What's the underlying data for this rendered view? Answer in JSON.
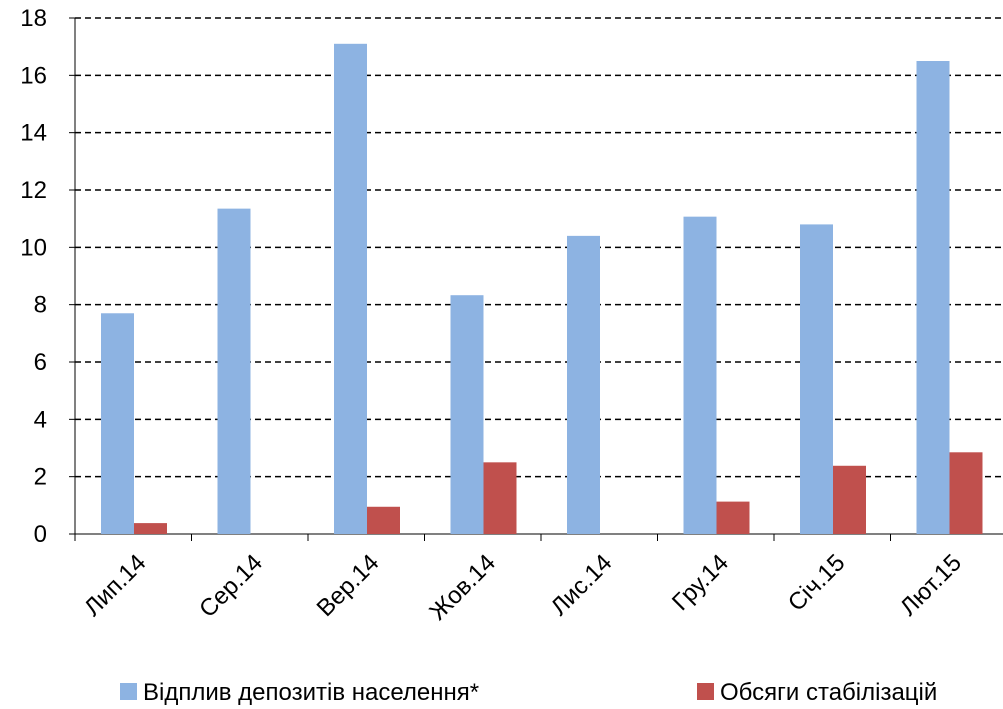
{
  "chart_data": {
    "type": "bar",
    "categories": [
      "Лип.14",
      "Сер.14",
      "Вер.14",
      "Жов.14",
      "Лис.14",
      "Гру.14",
      "Січ.15",
      "Лют.15"
    ],
    "series": [
      {
        "name": "Відплив депозитів населення*",
        "color": "#8db3e2",
        "values": [
          7.7,
          11.35,
          17.1,
          8.33,
          10.4,
          11.07,
          10.8,
          16.5
        ]
      },
      {
        "name": "Обсяги стабілізацій",
        "color": "#c0504d",
        "values": [
          0.38,
          null,
          0.95,
          2.5,
          null,
          1.13,
          2.38,
          2.85
        ]
      }
    ],
    "ylim": [
      0,
      18
    ],
    "yticks": [
      0,
      2,
      4,
      6,
      8,
      10,
      12,
      14,
      16,
      18
    ],
    "grid": true
  }
}
